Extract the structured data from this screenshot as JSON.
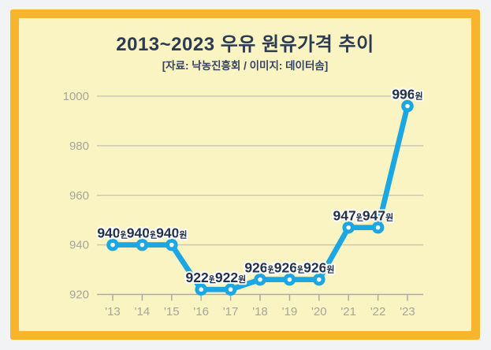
{
  "page": {
    "background": "#f2f3f4"
  },
  "card": {
    "background": "#faf4c2",
    "border_color": "#f8b42d"
  },
  "header": {
    "title": "2013~2023 우유 원유가격 추이",
    "subtitle": "[자료: 낙농진흥회 / 이미지: 데이터솜]"
  },
  "chart_data": {
    "type": "line",
    "title": "2013~2023 우유 원유가격 추이",
    "source": "[자료: 낙농진흥회 / 이미지: 데이터솜]",
    "categories": [
      "'13",
      "'14",
      "'15",
      "'16",
      "'17",
      "'18",
      "'19",
      "'20",
      "'21",
      "'22",
      "'23"
    ],
    "values": [
      940,
      940,
      940,
      922,
      922,
      926,
      926,
      926,
      947,
      947,
      996
    ],
    "unit_suffix": "원",
    "ylim": [
      920,
      1000
    ],
    "yticks": [
      920,
      940,
      960,
      980,
      1000
    ],
    "grid": true,
    "legend": false,
    "xlabel": "",
    "ylabel": "",
    "colors": {
      "line": "#1ca7e3",
      "marker_fill": "#ffffff",
      "point_label": "#22304a",
      "grid": "#cbc9b6",
      "axis": "#adaca0",
      "tick_label": "#a5a59b",
      "label_halo": "#ffffff"
    }
  }
}
